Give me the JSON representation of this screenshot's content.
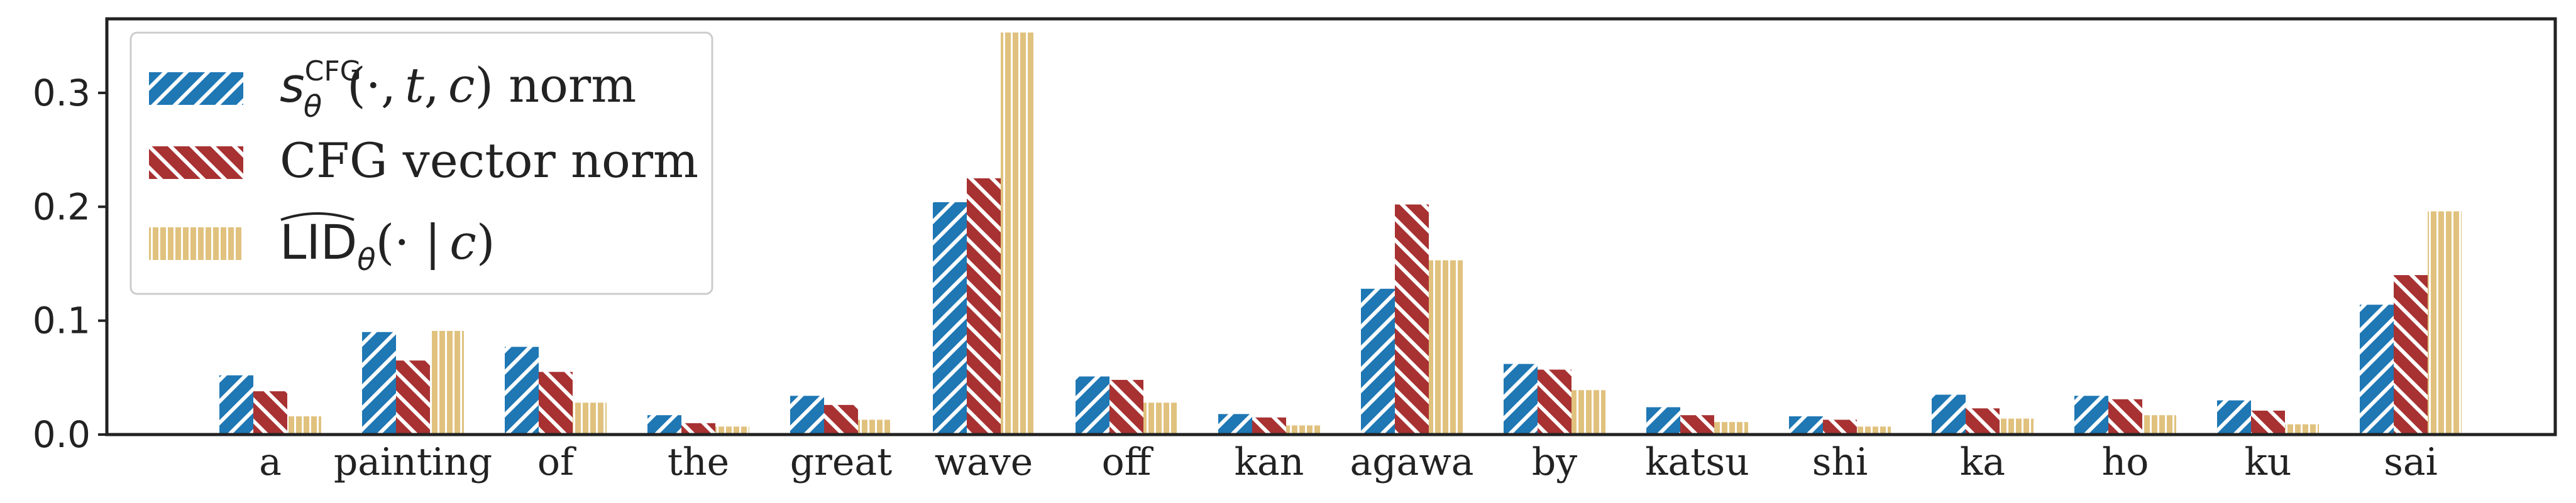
{
  "chart_data": {
    "type": "bar",
    "categories": [
      "a",
      "painting",
      "of",
      "the",
      "great",
      "wave",
      "off",
      "kan",
      "agawa",
      "by",
      "katsu",
      "shi",
      "ka",
      "ho",
      "ku",
      "sai"
    ],
    "series": [
      {
        "name": "s_θ^CFG(·, t, c) norm",
        "color": "#1f77b4",
        "pattern": "diagonal-right",
        "values": [
          0.052,
          0.09,
          0.077,
          0.017,
          0.034,
          0.204,
          0.051,
          0.018,
          0.128,
          0.062,
          0.024,
          0.016,
          0.035,
          0.034,
          0.03,
          0.114
        ]
      },
      {
        "name": "CFG vector norm",
        "color": "#a83232",
        "pattern": "diagonal-left",
        "values": [
          0.038,
          0.065,
          0.055,
          0.01,
          0.026,
          0.225,
          0.048,
          0.015,
          0.202,
          0.057,
          0.017,
          0.013,
          0.023,
          0.031,
          0.021,
          0.14
        ]
      },
      {
        "name": "LID_θ(· | c)",
        "color": "#e0c27e",
        "pattern": "vertical",
        "values": [
          0.016,
          0.091,
          0.028,
          0.007,
          0.013,
          0.353,
          0.028,
          0.008,
          0.153,
          0.039,
          0.011,
          0.007,
          0.014,
          0.017,
          0.009,
          0.196
        ]
      }
    ],
    "yticks": [
      "0.0",
      "0.1",
      "0.2",
      "0.3"
    ],
    "ylim": [
      0,
      0.365
    ],
    "legend_position": "upper-left",
    "grid": false
  }
}
